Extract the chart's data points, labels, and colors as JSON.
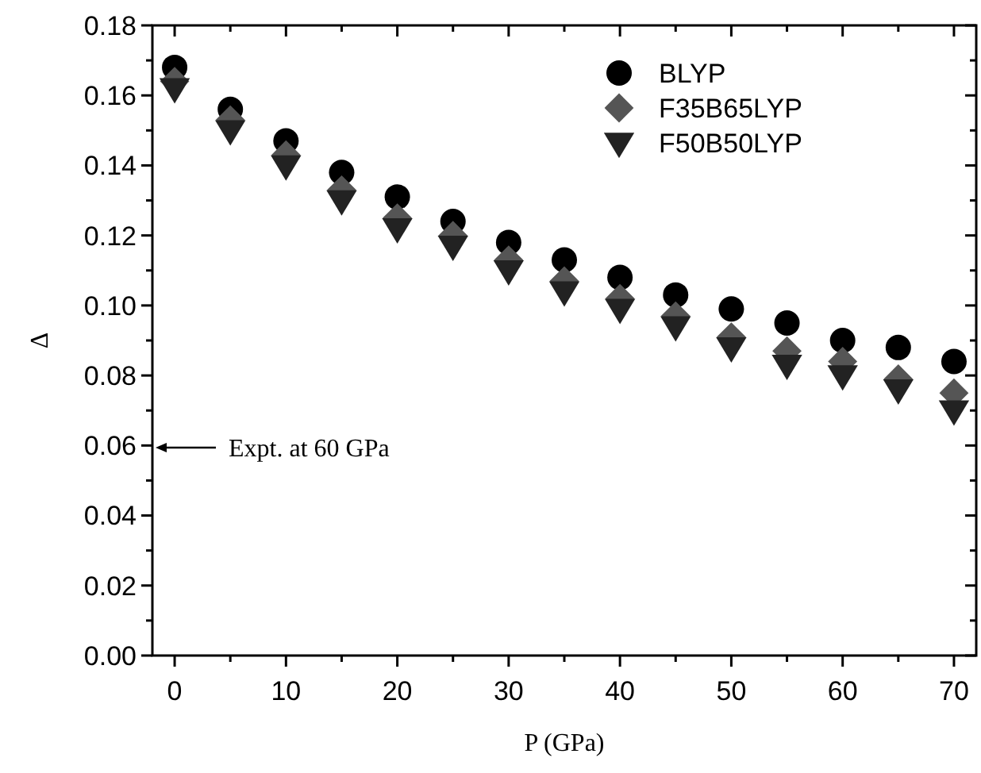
{
  "chart_data": {
    "type": "scatter",
    "xlabel": "P (GPa)",
    "ylabel": "Δ",
    "x": [
      0,
      5,
      10,
      15,
      20,
      25,
      30,
      35,
      40,
      45,
      50,
      55,
      60,
      65,
      70
    ],
    "series": [
      {
        "name": "BLYP",
        "color": "#000000",
        "marker": "circle",
        "values": [
          0.168,
          0.156,
          0.147,
          0.138,
          0.131,
          0.124,
          0.118,
          0.113,
          0.108,
          0.103,
          0.099,
          0.095,
          0.09,
          0.088,
          0.084
        ]
      },
      {
        "name": "F35B65LYP",
        "color": "#555555",
        "marker": "diamond",
        "values": [
          0.164,
          0.153,
          0.143,
          0.133,
          0.125,
          0.12,
          0.113,
          0.107,
          0.102,
          0.097,
          0.091,
          0.087,
          0.084,
          0.079,
          0.075
        ]
      },
      {
        "name": "F50B50LYP",
        "color": "#222222",
        "marker": "triangle",
        "values": [
          0.162,
          0.15,
          0.14,
          0.13,
          0.122,
          0.117,
          0.11,
          0.104,
          0.099,
          0.094,
          0.088,
          0.083,
          0.08,
          0.076,
          0.07
        ]
      }
    ],
    "xlim": [
      -2,
      72
    ],
    "xticks": [
      0,
      {
        "value": 5,
        "label": null
      },
      10,
      {
        "value": 15,
        "label": null
      },
      20,
      {
        "value": 25,
        "label": null
      },
      30,
      {
        "value": 35,
        "label": null
      },
      40,
      {
        "value": 45,
        "label": null
      },
      50,
      {
        "value": 55,
        "label": null
      },
      60,
      {
        "value": 65,
        "label": null
      },
      70
    ],
    "ylim": [
      0,
      0.18
    ],
    "yticks": [
      {
        "value": 0,
        "label": "0.00"
      },
      {
        "value": 0.01,
        "label": null
      },
      {
        "value": 0.02,
        "label": "0.02"
      },
      {
        "value": 0.03,
        "label": null
      },
      {
        "value": 0.04,
        "label": "0.04"
      },
      {
        "value": 0.05,
        "label": null
      },
      {
        "value": 0.06,
        "label": "0.06"
      },
      {
        "value": 0.07,
        "label": null
      },
      {
        "value": 0.08,
        "label": "0.08"
      },
      {
        "value": 0.09,
        "label": null
      },
      {
        "value": 0.1,
        "label": "0.10"
      },
      {
        "value": 0.11,
        "label": null
      },
      {
        "value": 0.12,
        "label": "0.12"
      },
      {
        "value": 0.13,
        "label": null
      },
      {
        "value": 0.14,
        "label": "0.14"
      },
      {
        "value": 0.15,
        "label": null
      },
      {
        "value": 0.16,
        "label": "0.16"
      },
      {
        "value": 0.17,
        "label": null
      },
      {
        "value": 0.18,
        "label": "0.18"
      }
    ],
    "annotations": [
      "Expt. at 60 GPa"
    ],
    "legend": "top right",
    "grid": false
  }
}
